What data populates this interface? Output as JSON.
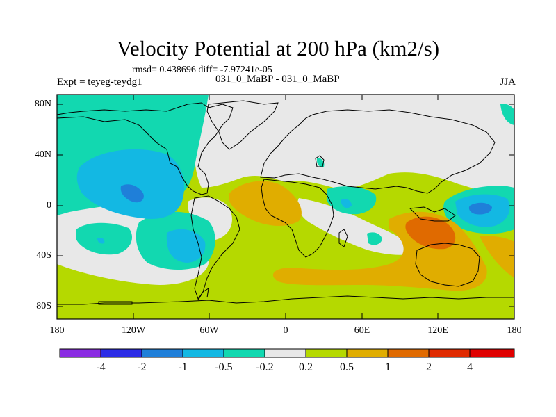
{
  "title": "Velocity Potential at 200 hPa (km2/s)",
  "stats": "rmsd= 0.438696 diff= -7.97241e-05",
  "experiment": "Expt = teyeg-teydg1",
  "center_label": "031_0_MaBP - 031_0_MaBP",
  "season": "JJA",
  "lat_ticks": [
    "80N",
    "40N",
    "0",
    "40S",
    "80S"
  ],
  "lon_ticks": [
    "180",
    "120W",
    "60W",
    "0",
    "60E",
    "120E",
    "180"
  ],
  "colorbar": {
    "levels": [
      "-4",
      "-2",
      "-1",
      "-0.5",
      "-0.2",
      "0.2",
      "0.5",
      "1",
      "2",
      "4"
    ],
    "colors": [
      "#8a2be2",
      "#2c2ce6",
      "#1f7fd9",
      "#13b8e3",
      "#12d8b0",
      "#e8e8e8",
      "#b5d900",
      "#e0ad00",
      "#e06a00",
      "#e02a00",
      "#e00000"
    ]
  },
  "palette": {
    "land_outline": "#000000",
    "neutral": "#e8e8e8",
    "teal": "#12d8b0",
    "cyan": "#13b8e3",
    "blue": "#1f7fd9",
    "lime": "#b5d900",
    "gold": "#e0ad00",
    "orange": "#e06a00"
  }
}
